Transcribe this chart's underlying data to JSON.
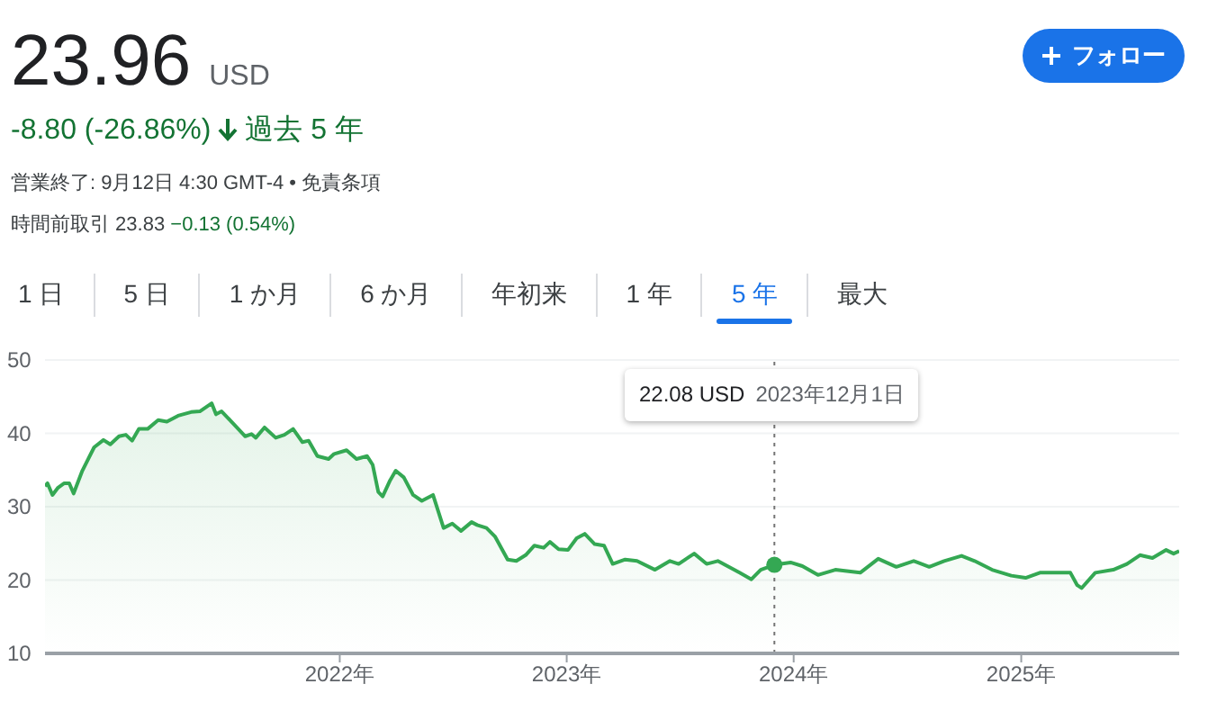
{
  "chart_data": {
    "type": "area",
    "title": "23.96",
    "subtitle": "USD",
    "annotations": [
      "-8.80 (-26.86%)",
      "過去 5 年",
      "営業終了: 9月12日 4:30 GMT-4 • 免責条項",
      "時間前取引 23.83",
      "−0.13 (0.54%)",
      "フォロー",
      "1 日",
      "5 日",
      "1 か月",
      "6 か月",
      "年初来",
      "1 年",
      "5 年",
      "最大",
      "22.08 USD",
      "2023年12月1日"
    ],
    "xlim": [
      "2020-09-14",
      "2025-09-12"
    ],
    "xticks": [
      {
        "value": "2022-01-01",
        "label": "2022年"
      },
      {
        "value": "2023-01-01",
        "label": "2023年"
      },
      {
        "value": "2024-01-01",
        "label": "2024年"
      },
      {
        "value": "2025-01-01",
        "label": "2025年"
      }
    ],
    "ylim": [
      10,
      50
    ],
    "yticks": [
      10,
      20,
      30,
      40,
      50
    ],
    "grid": "y",
    "marker": "none",
    "line_style": "solid",
    "ref_lines": [
      {
        "axis": "x",
        "value": "2023-12-01",
        "color": "#757575",
        "line_style": "dotted"
      }
    ],
    "series": [
      {
        "color": "#34a853",
        "x": [
          "2020-09-14",
          "2020-09-18",
          "2020-09-26",
          "2020-10-05",
          "2020-10-15",
          "2020-10-23",
          "2020-10-30",
          "2020-11-13",
          "2020-12-02",
          "2020-12-17",
          "2020-12-28",
          "2021-01-11",
          "2021-01-22",
          "2021-02-01",
          "2021-02-12",
          "2021-02-26",
          "2021-03-15",
          "2021-03-29",
          "2021-04-16",
          "2021-05-07",
          "2021-05-21",
          "2021-06-09",
          "2021-06-16",
          "2021-06-25",
          "2021-07-13",
          "2021-08-02",
          "2021-08-12",
          "2021-08-19",
          "2021-09-02",
          "2021-09-20",
          "2021-10-04",
          "2021-10-18",
          "2021-11-02",
          "2021-11-12",
          "2021-11-26",
          "2021-12-14",
          "2021-12-23",
          "2022-01-12",
          "2022-01-28",
          "2022-02-14",
          "2022-02-23",
          "2022-03-04",
          "2022-03-11",
          "2022-03-23",
          "2022-04-01",
          "2022-04-14",
          "2022-04-29",
          "2022-05-13",
          "2022-05-31",
          "2022-06-17",
          "2022-07-01",
          "2022-07-15",
          "2022-08-01",
          "2022-08-10",
          "2022-08-25",
          "2022-09-08",
          "2022-09-28",
          "2022-10-12",
          "2022-10-27",
          "2022-11-10",
          "2022-11-25",
          "2022-12-05",
          "2022-12-19",
          "2023-01-03",
          "2023-01-17",
          "2023-01-30",
          "2023-02-15",
          "2023-03-02",
          "2023-03-16",
          "2023-04-05",
          "2023-04-24",
          "2023-05-23",
          "2023-06-16",
          "2023-06-30",
          "2023-07-25",
          "2023-08-14",
          "2023-09-01",
          "2023-10-06",
          "2023-10-25",
          "2023-11-09",
          "2023-12-01",
          "2023-12-27",
          "2024-01-15",
          "2024-02-09",
          "2024-03-08",
          "2024-04-17",
          "2024-05-16",
          "2024-06-14",
          "2024-07-12",
          "2024-08-06",
          "2024-08-30",
          "2024-09-27",
          "2024-10-18",
          "2024-11-15",
          "2024-12-16",
          "2025-01-08",
          "2025-01-31",
          "2025-03-21",
          "2025-04-01",
          "2025-04-08",
          "2025-04-30",
          "2025-05-29",
          "2025-06-20",
          "2025-07-11",
          "2025-07-31",
          "2025-08-22",
          "2025-09-03",
          "2025-09-12"
        ],
        "values": [
          32.8,
          33.2,
          31.6,
          32.6,
          33.2,
          33.2,
          31.8,
          34.9,
          38.1,
          39.1,
          38.5,
          39.6,
          39.8,
          39.0,
          40.6,
          40.6,
          41.8,
          41.6,
          42.4,
          42.9,
          43.0,
          44.1,
          42.6,
          43.0,
          41.4,
          39.6,
          39.9,
          39.4,
          40.8,
          39.4,
          39.8,
          40.6,
          38.8,
          39.0,
          36.9,
          36.5,
          37.2,
          37.7,
          36.5,
          36.9,
          35.7,
          32.0,
          31.4,
          33.6,
          34.9,
          34.0,
          31.6,
          30.8,
          31.6,
          27.1,
          27.7,
          26.7,
          27.9,
          27.5,
          27.1,
          25.9,
          22.8,
          22.6,
          23.4,
          24.7,
          24.4,
          25.2,
          24.2,
          24.1,
          25.7,
          26.3,
          24.9,
          24.7,
          22.2,
          22.8,
          22.6,
          21.4,
          22.6,
          22.2,
          23.6,
          22.2,
          22.6,
          21.0,
          20.1,
          21.4,
          22.08,
          22.4,
          21.9,
          20.7,
          21.4,
          21.0,
          22.9,
          21.8,
          22.6,
          21.8,
          22.6,
          23.3,
          22.6,
          21.4,
          20.6,
          20.3,
          21.0,
          21.0,
          19.3,
          18.9,
          21.0,
          21.4,
          22.2,
          23.4,
          23.0,
          24.1,
          23.6,
          23.96
        ]
      },
      {
        "type": "scatter",
        "color": "#34a853",
        "marker": "circle",
        "x": [
          "2023-12-01"
        ],
        "values": [
          22.08
        ]
      }
    ]
  }
}
